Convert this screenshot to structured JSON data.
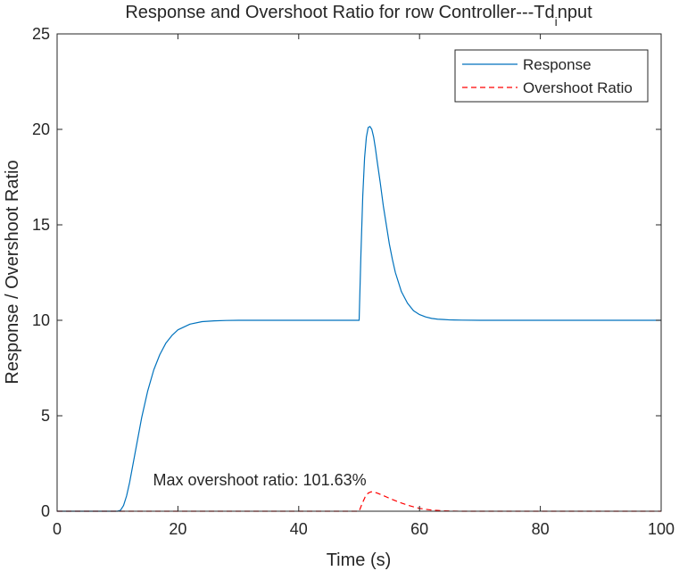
{
  "chart_data": {
    "type": "line",
    "title_main": "Response and Overshoot Ratio for row Controller---Td",
    "title_sub": "i",
    "title_tail": "nput",
    "xlabel": "Time (s)",
    "ylabel": "Response / Overshoot Ratio",
    "xlim": [
      0,
      100
    ],
    "ylim": [
      0,
      25
    ],
    "xticks": [
      0,
      20,
      40,
      60,
      80,
      100
    ],
    "yticks": [
      0,
      5,
      10,
      15,
      20,
      25
    ],
    "xtick_labels": [
      "0",
      "20",
      "40",
      "60",
      "80",
      "100"
    ],
    "ytick_labels": [
      "0",
      "5",
      "10",
      "15",
      "20",
      "25"
    ],
    "grid": false,
    "legend_position": "top-right",
    "series": [
      {
        "name": "Response",
        "color": "#0072BD",
        "style": "solid",
        "x": [
          0,
          10,
          10.5,
          11,
          11.5,
          12,
          13,
          14,
          15,
          16,
          17,
          18,
          19,
          20,
          22,
          24,
          26,
          28,
          30,
          35,
          40,
          45,
          50,
          50.3,
          50.6,
          50.9,
          51.2,
          51.5,
          51.8,
          52.1,
          52.4,
          52.7,
          53,
          53.5,
          54,
          54.5,
          55,
          55.5,
          56,
          57,
          58,
          59,
          60,
          61,
          62,
          63,
          64,
          65,
          67,
          70,
          75,
          80,
          90,
          100
        ],
        "values": [
          0,
          0,
          0.05,
          0.3,
          0.8,
          1.5,
          3.2,
          4.9,
          6.3,
          7.4,
          8.2,
          8.8,
          9.2,
          9.5,
          9.8,
          9.93,
          9.97,
          9.99,
          10,
          10,
          10,
          10,
          10,
          13.5,
          16.5,
          18.5,
          19.6,
          20.1,
          20.15,
          20.0,
          19.6,
          19.0,
          18.3,
          17.2,
          16.0,
          15.0,
          14.0,
          13.2,
          12.5,
          11.5,
          10.9,
          10.5,
          10.3,
          10.18,
          10.1,
          10.06,
          10.04,
          10.02,
          10.01,
          10,
          10,
          10,
          10,
          10
        ]
      },
      {
        "name": "Overshoot Ratio",
        "color": "#FF0000",
        "style": "dashed",
        "x": [
          0,
          50,
          50.5,
          51,
          51.5,
          52,
          52.5,
          53,
          54,
          55,
          56,
          57,
          58,
          59,
          60,
          61,
          62,
          63,
          64,
          65,
          67,
          70,
          75,
          80,
          90,
          100
        ],
        "values": [
          0,
          0,
          0.4,
          0.75,
          0.95,
          1.02,
          1.0,
          0.95,
          0.82,
          0.68,
          0.55,
          0.43,
          0.32,
          0.23,
          0.15,
          0.1,
          0.06,
          0.04,
          0.02,
          0.01,
          0,
          0,
          0,
          0,
          0,
          0
        ]
      }
    ],
    "annotation": {
      "text": "Max overshoot ratio: 101.63%",
      "x": 52,
      "y": 1.02
    }
  }
}
